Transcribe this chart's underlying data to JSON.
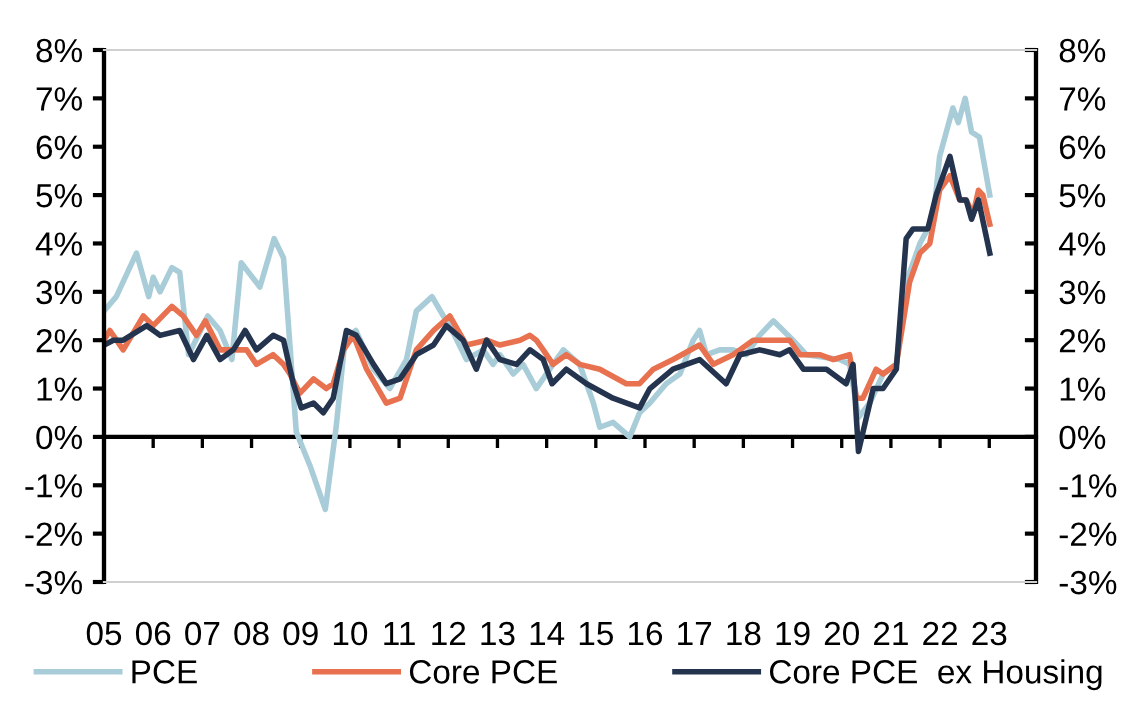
{
  "chart_data": {
    "type": "line",
    "xlim": [
      2005,
      2023.95
    ],
    "xticks": [
      {
        "value": 2005,
        "label": "05"
      },
      {
        "value": 2006,
        "label": "06"
      },
      {
        "value": 2007,
        "label": "07"
      },
      {
        "value": 2008,
        "label": "08"
      },
      {
        "value": 2009,
        "label": "09"
      },
      {
        "value": 2010,
        "label": "10"
      },
      {
        "value": 2011,
        "label": "11"
      },
      {
        "value": 2012,
        "label": "12"
      },
      {
        "value": 2013,
        "label": "13"
      },
      {
        "value": 2014,
        "label": "14"
      },
      {
        "value": 2015,
        "label": "15"
      },
      {
        "value": 2016,
        "label": "16"
      },
      {
        "value": 2017,
        "label": "17"
      },
      {
        "value": 2018,
        "label": "18"
      },
      {
        "value": 2019,
        "label": "19"
      },
      {
        "value": 2020,
        "label": "20"
      },
      {
        "value": 2021,
        "label": "21"
      },
      {
        "value": 2022,
        "label": "22"
      },
      {
        "value": 2023,
        "label": "23"
      }
    ],
    "ylim": [
      -3,
      8
    ],
    "yticks": [
      {
        "value": -3,
        "label": "-3%"
      },
      {
        "value": -2,
        "label": "-2%"
      },
      {
        "value": -1,
        "label": "-1%"
      },
      {
        "value": 0,
        "label": "0%"
      },
      {
        "value": 1,
        "label": "1%"
      },
      {
        "value": 2,
        "label": "2%"
      },
      {
        "value": 3,
        "label": "3%"
      },
      {
        "value": 4,
        "label": "4%"
      },
      {
        "value": 5,
        "label": "5%"
      },
      {
        "value": 6,
        "label": "6%"
      },
      {
        "value": 7,
        "label": "7%"
      },
      {
        "value": 8,
        "label": "8%"
      }
    ],
    "y2lim": [
      -3,
      8
    ],
    "y2ticks": [
      {
        "value": -3,
        "label": "-3%"
      },
      {
        "value": -2,
        "label": "-2%"
      },
      {
        "value": -1,
        "label": "-1%"
      },
      {
        "value": 0,
        "label": "0%"
      },
      {
        "value": 1,
        "label": "1%"
      },
      {
        "value": 2,
        "label": "2%"
      },
      {
        "value": 3,
        "label": "3%"
      },
      {
        "value": 4,
        "label": "4%"
      },
      {
        "value": 5,
        "label": "5%"
      },
      {
        "value": 6,
        "label": "6%"
      },
      {
        "value": 7,
        "label": "7%"
      },
      {
        "value": 8,
        "label": "8%"
      }
    ],
    "legend": "bottom",
    "line_style": "solid",
    "marker": "none",
    "series": [
      {
        "name": "PCE",
        "color": "#a9cdd8",
        "x": [
          2005.0,
          2005.25,
          2005.66,
          2005.91,
          2006.0,
          2006.14,
          2006.38,
          2006.54,
          2006.72,
          2007.11,
          2007.36,
          2007.6,
          2007.79,
          2008.17,
          2008.46,
          2008.65,
          2008.91,
          2009.19,
          2009.5,
          2009.72,
          2009.9,
          2010.12,
          2010.48,
          2010.81,
          2011.15,
          2011.35,
          2011.67,
          2011.9,
          2012.03,
          2012.37,
          2012.71,
          2012.91,
          2013.05,
          2013.32,
          2013.52,
          2013.79,
          2014.13,
          2014.34,
          2014.67,
          2014.95,
          2015.08,
          2015.35,
          2015.69,
          2015.89,
          2016.1,
          2016.43,
          2016.71,
          2016.98,
          2017.11,
          2017.25,
          2017.52,
          2017.79,
          2018.06,
          2018.33,
          2018.61,
          2019.01,
          2019.28,
          2019.96,
          2020.16,
          2020.34,
          2020.57,
          2020.84,
          2021.11,
          2021.31,
          2021.59,
          2021.86,
          2021.99,
          2022.26,
          2022.37,
          2022.51,
          2022.64,
          2022.8,
          2023.01
        ],
        "values": [
          2.6,
          2.9,
          3.8,
          2.9,
          3.3,
          3.0,
          3.5,
          3.4,
          1.7,
          2.5,
          2.2,
          1.6,
          3.6,
          3.1,
          4.1,
          3.7,
          0.1,
          -0.6,
          -1.5,
          0.2,
          2.0,
          2.2,
          1.4,
          1.0,
          1.6,
          2.6,
          2.9,
          2.5,
          2.3,
          1.6,
          1.8,
          1.5,
          1.7,
          1.3,
          1.5,
          1.0,
          1.5,
          1.8,
          1.5,
          0.7,
          0.2,
          0.3,
          0.0,
          0.5,
          0.7,
          1.1,
          1.3,
          2.0,
          2.2,
          1.7,
          1.8,
          1.8,
          1.7,
          2.1,
          2.4,
          2.0,
          1.7,
          1.6,
          1.5,
          0.4,
          0.7,
          1.3,
          1.5,
          3.2,
          4.0,
          4.5,
          5.8,
          6.8,
          6.5,
          7.0,
          6.3,
          6.2,
          5.0
        ]
      },
      {
        "name": "Core PCE",
        "color": "#e8714f",
        "x": [
          2005.0,
          2005.12,
          2005.39,
          2005.8,
          2006.0,
          2006.38,
          2006.61,
          2006.88,
          2007.06,
          2007.36,
          2007.63,
          2007.9,
          2008.1,
          2008.44,
          2008.65,
          2008.78,
          2008.98,
          2009.26,
          2009.52,
          2009.66,
          2009.87,
          2010.07,
          2010.34,
          2010.74,
          2011.02,
          2011.35,
          2011.7,
          2012.03,
          2012.37,
          2012.78,
          2013.05,
          2013.46,
          2013.66,
          2013.79,
          2013.93,
          2014.13,
          2014.4,
          2014.67,
          2015.08,
          2015.62,
          2015.89,
          2016.17,
          2016.57,
          2017.11,
          2017.39,
          2017.79,
          2018.2,
          2018.61,
          2018.94,
          2019.15,
          2019.55,
          2019.83,
          2020.16,
          2020.3,
          2020.43,
          2020.7,
          2020.84,
          2021.11,
          2021.38,
          2021.59,
          2021.79,
          2021.99,
          2022.2,
          2022.4,
          2022.53,
          2022.67,
          2022.78,
          2022.87,
          2023.01
        ],
        "values": [
          2.0,
          2.2,
          1.8,
          2.5,
          2.3,
          2.7,
          2.5,
          2.1,
          2.4,
          1.8,
          1.8,
          1.8,
          1.5,
          1.7,
          1.5,
          1.3,
          0.9,
          1.2,
          1.0,
          1.1,
          1.8,
          2.1,
          1.4,
          0.7,
          0.8,
          1.8,
          2.2,
          2.5,
          1.9,
          2.0,
          1.9,
          2.0,
          2.1,
          2.0,
          1.8,
          1.5,
          1.7,
          1.5,
          1.4,
          1.1,
          1.1,
          1.4,
          1.6,
          1.9,
          1.5,
          1.7,
          2.0,
          2.0,
          2.0,
          1.7,
          1.7,
          1.6,
          1.7,
          0.8,
          0.8,
          1.4,
          1.3,
          1.5,
          3.2,
          3.8,
          4.0,
          5.1,
          5.4,
          4.9,
          4.9,
          4.6,
          5.1,
          5.0,
          4.4
        ]
      },
      {
        "name": "Core PCE  ex Housing",
        "color": "#24344f",
        "x": [
          2005.0,
          2005.19,
          2005.39,
          2005.87,
          2006.14,
          2006.54,
          2006.82,
          2007.09,
          2007.36,
          2007.63,
          2007.87,
          2008.1,
          2008.44,
          2008.65,
          2008.85,
          2009.01,
          2009.26,
          2009.46,
          2009.66,
          2009.93,
          2010.13,
          2010.48,
          2010.74,
          2011.02,
          2011.35,
          2011.7,
          2011.96,
          2012.3,
          2012.57,
          2012.78,
          2013.05,
          2013.39,
          2013.66,
          2013.93,
          2014.11,
          2014.4,
          2014.81,
          2015.35,
          2015.89,
          2016.1,
          2016.57,
          2017.11,
          2017.65,
          2017.93,
          2018.33,
          2018.74,
          2018.94,
          2019.22,
          2019.69,
          2020.09,
          2020.23,
          2020.34,
          2020.64,
          2020.84,
          2021.11,
          2021.31,
          2021.45,
          2021.75,
          2021.92,
          2022.2,
          2022.4,
          2022.53,
          2022.64,
          2022.78,
          2023.01
        ],
        "values": [
          1.9,
          2.0,
          2.0,
          2.3,
          2.1,
          2.2,
          1.6,
          2.1,
          1.6,
          1.8,
          2.2,
          1.8,
          2.1,
          2.0,
          1.1,
          0.6,
          0.7,
          0.5,
          0.8,
          2.2,
          2.1,
          1.5,
          1.1,
          1.2,
          1.7,
          1.9,
          2.3,
          2.0,
          1.4,
          2.0,
          1.6,
          1.5,
          1.8,
          1.6,
          1.1,
          1.4,
          1.1,
          0.8,
          0.6,
          1.0,
          1.4,
          1.6,
          1.1,
          1.7,
          1.8,
          1.7,
          1.8,
          1.4,
          1.4,
          1.1,
          1.5,
          -0.3,
          1.0,
          1.0,
          1.4,
          4.1,
          4.3,
          4.3,
          5.0,
          5.8,
          4.9,
          4.9,
          4.5,
          4.9,
          3.8
        ]
      }
    ]
  }
}
